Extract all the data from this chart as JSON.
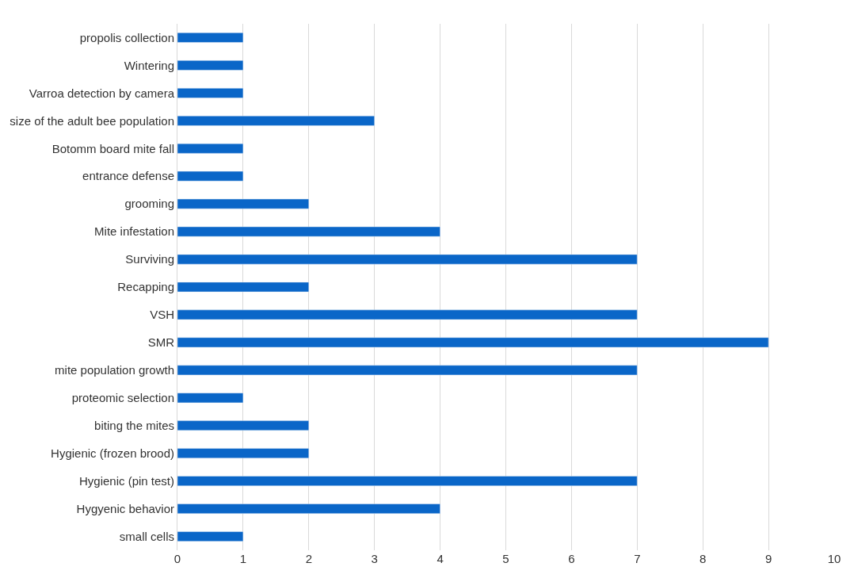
{
  "chart_data": {
    "type": "bar",
    "orientation": "horizontal",
    "categories": [
      "propolis collection",
      "Wintering",
      "Varroa detection by camera",
      "size of the adult bee population",
      "Botomm board mite fall",
      "entrance defense",
      "grooming",
      "Mite infestation",
      "Surviving",
      "Recapping",
      "VSH",
      "SMR",
      "mite population growth",
      "proteomic selection",
      "biting the mites",
      "Hygienic (frozen brood)",
      "Hygienic (pin test)",
      "Hygyenic behavior",
      "small cells"
    ],
    "values": [
      1,
      1,
      1,
      3,
      1,
      1,
      2,
      4,
      7,
      2,
      7,
      9,
      7,
      1,
      2,
      2,
      7,
      4,
      1
    ],
    "color": "#0a66c8",
    "xlim": [
      0,
      10
    ],
    "xticks": [
      0,
      1,
      2,
      3,
      4,
      5,
      6,
      7,
      8,
      9,
      10
    ],
    "grid": "x",
    "legend": false
  }
}
